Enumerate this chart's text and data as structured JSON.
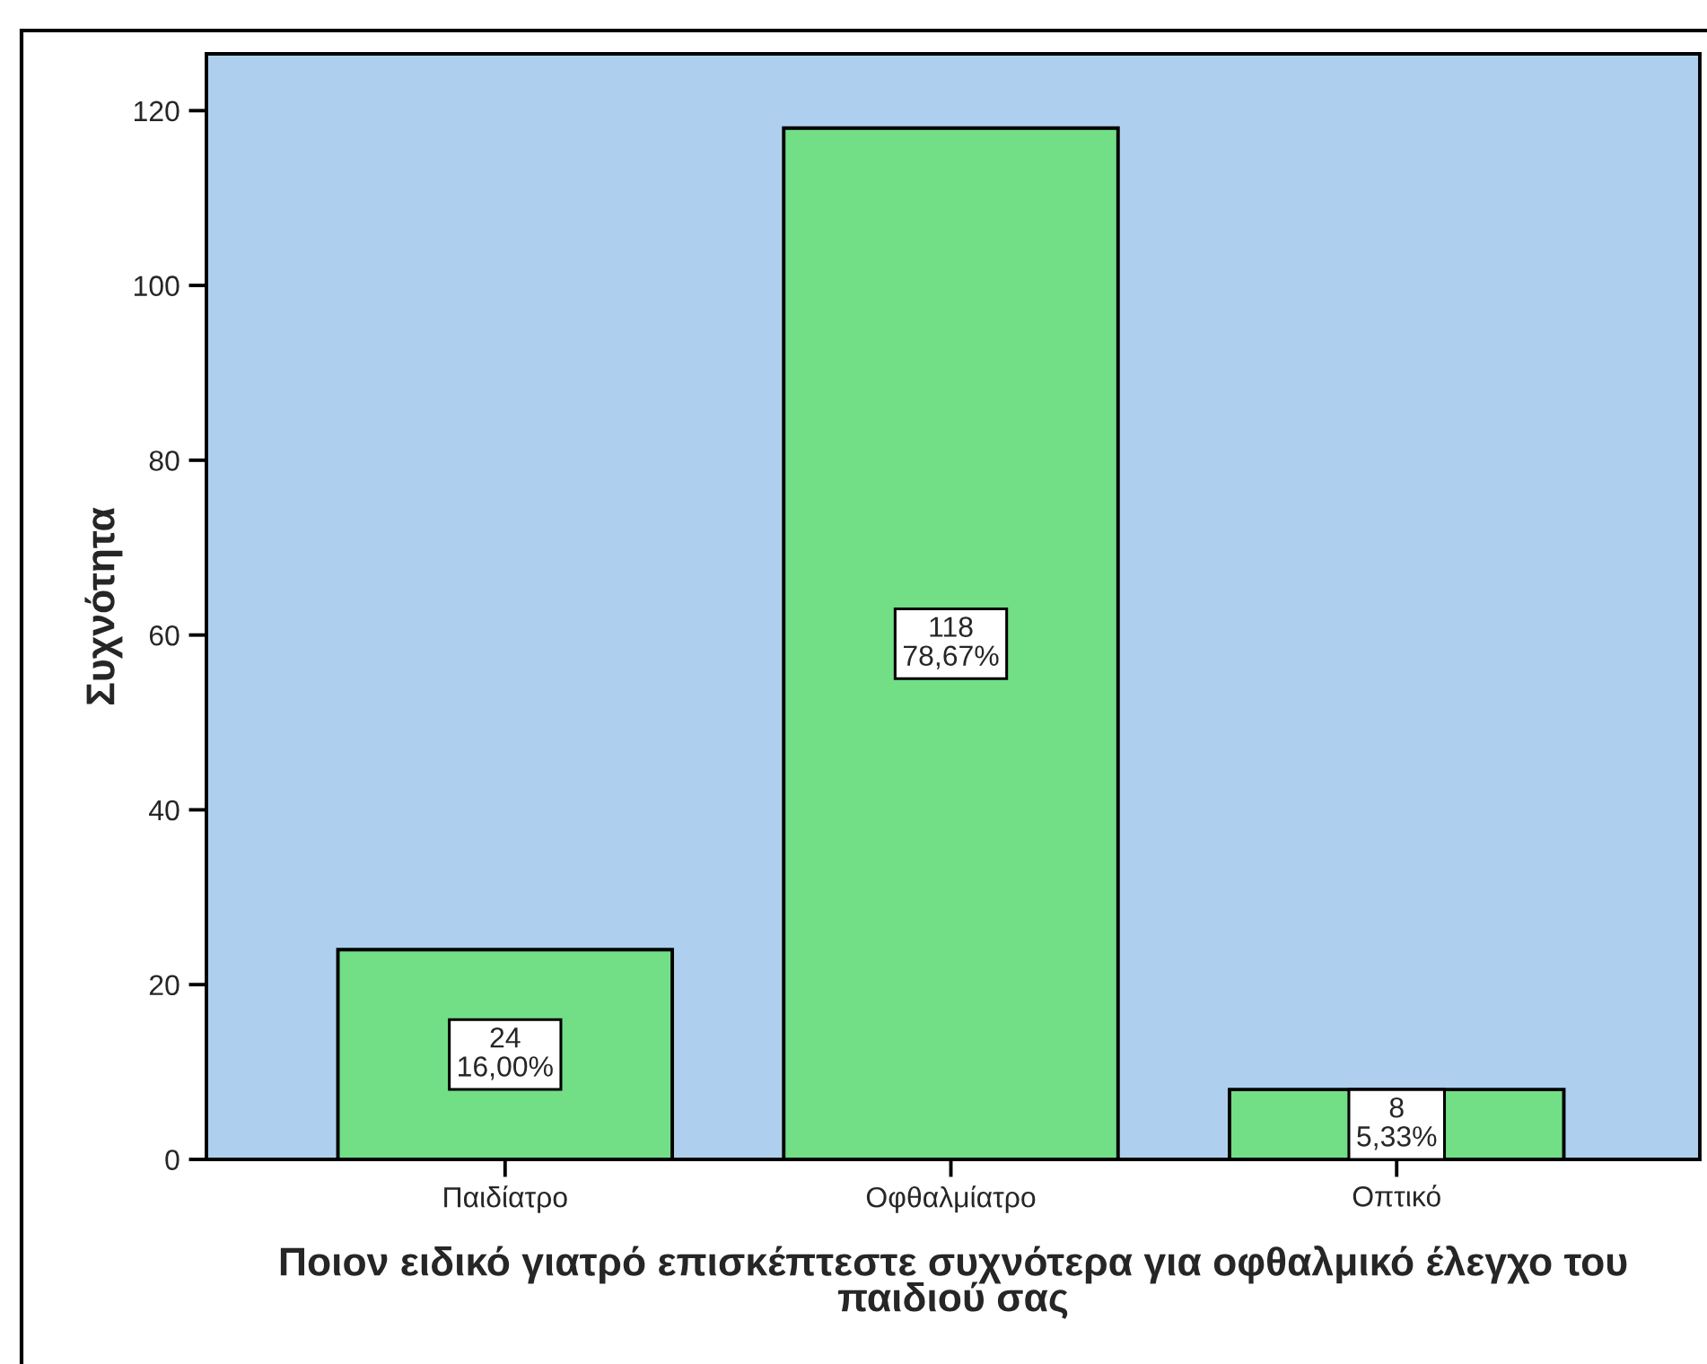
{
  "chart_data": {
    "type": "bar",
    "xlabel": "Ποιον ειδικό γιατρό επισκέπτεστε συχνότερα για οφθαλμικό έλεγχο του\nπαιδιού σας",
    "ylabel": "Συχνότητα",
    "categories": [
      "Παιδίατρο",
      "Οφθαλμίατρο",
      "Οπτικό"
    ],
    "values": [
      24,
      118,
      8
    ],
    "color": "#72de86",
    "value_labels": [
      "24\n16,00%",
      "118\n78,67%",
      "8\n5,33%"
    ],
    "ylim": [
      0,
      126.5
    ],
    "yticks": [
      0,
      20,
      40,
      60,
      80,
      100,
      120
    ]
  }
}
